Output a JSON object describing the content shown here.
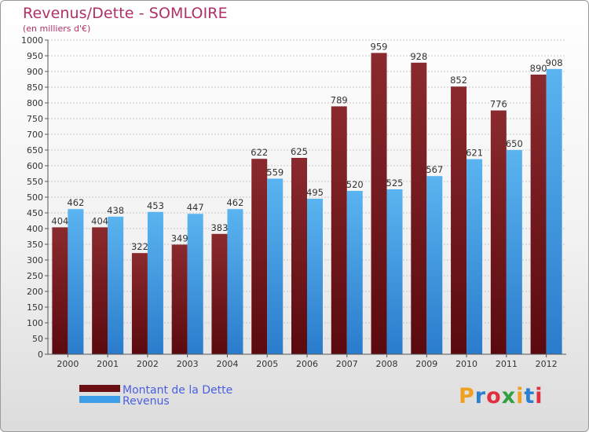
{
  "header": {
    "title": "Revenus/Dette - SOMLOIRE",
    "subtitle": "(en milliers d'€)"
  },
  "logo": {
    "text": "Proxiti",
    "colors": [
      "#f0a020",
      "#2a7fd0",
      "#e03040",
      "#30a040",
      "#f0a020",
      "#2a7fd0",
      "#e03040"
    ]
  },
  "chart_data": {
    "type": "bar",
    "title": "Revenus/Dette - SOMLOIRE",
    "subtitle": "(en milliers d'€)",
    "categories": [
      "2000",
      "2001",
      "2002",
      "2003",
      "2004",
      "2005",
      "2006",
      "2007",
      "2008",
      "2009",
      "2010",
      "2011",
      "2012"
    ],
    "series": [
      {
        "name": "Montant de la Dette",
        "color": "#7a1a1e",
        "values": [
          404,
          404,
          322,
          349,
          383,
          622,
          625,
          789,
          959,
          928,
          852,
          776,
          890
        ]
      },
      {
        "name": "Revenus",
        "color": "#3d9de6",
        "values": [
          462,
          438,
          453,
          447,
          462,
          559,
          495,
          520,
          525,
          567,
          621,
          650,
          908
        ]
      }
    ],
    "ylim": [
      0,
      1000
    ],
    "yticks": [
      0,
      50,
      100,
      150,
      200,
      250,
      300,
      350,
      400,
      450,
      500,
      550,
      600,
      650,
      700,
      750,
      800,
      850,
      900,
      950,
      1000
    ],
    "grid": true,
    "legend_position": "bottom-left"
  }
}
